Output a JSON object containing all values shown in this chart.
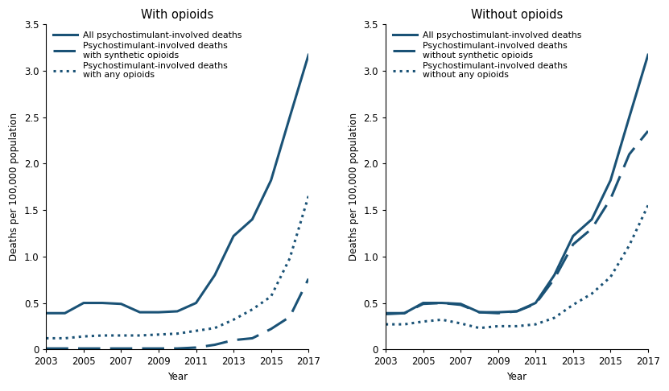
{
  "years": [
    2003,
    2004,
    2005,
    2006,
    2007,
    2008,
    2009,
    2010,
    2011,
    2012,
    2013,
    2014,
    2015,
    2016,
    2017
  ],
  "left_panel": {
    "title": "With opioids",
    "line1_label": "All psychostimulant-involved deaths",
    "line2_label": "Psychostimulant-involved deaths\nwith synthetic opioids",
    "line3_label": "Psychostimulant-involved deaths\nwith any opioids",
    "line1": [
      0.39,
      0.39,
      0.5,
      0.5,
      0.49,
      0.4,
      0.4,
      0.41,
      0.5,
      0.8,
      1.22,
      1.4,
      1.82,
      2.5,
      3.17
    ],
    "line2": [
      0.01,
      0.01,
      0.01,
      0.01,
      0.01,
      0.01,
      0.01,
      0.01,
      0.02,
      0.05,
      0.1,
      0.12,
      0.22,
      0.35,
      0.76
    ],
    "line3": [
      0.12,
      0.12,
      0.14,
      0.15,
      0.15,
      0.15,
      0.16,
      0.17,
      0.2,
      0.23,
      0.32,
      0.43,
      0.57,
      0.98,
      1.65
    ]
  },
  "right_panel": {
    "title": "Without opioids",
    "line1_label": "All psychostimulant-involved deaths",
    "line2_label": "Psychostimulant-involved deaths\nwithout synthetic opioids",
    "line3_label": "Psychostimulant-involved deaths\nwithout any opioids",
    "line1": [
      0.39,
      0.39,
      0.5,
      0.5,
      0.49,
      0.4,
      0.4,
      0.41,
      0.5,
      0.8,
      1.22,
      1.4,
      1.82,
      2.5,
      3.17
    ],
    "line2": [
      0.38,
      0.39,
      0.49,
      0.5,
      0.48,
      0.4,
      0.39,
      0.41,
      0.49,
      0.76,
      1.13,
      1.3,
      1.62,
      2.1,
      2.35
    ],
    "line3": [
      0.27,
      0.27,
      0.3,
      0.32,
      0.28,
      0.23,
      0.25,
      0.25,
      0.27,
      0.34,
      0.48,
      0.6,
      0.78,
      1.12,
      1.55
    ]
  },
  "ylabel": "Deaths per 100,000 population",
  "xlabel": "Year",
  "ylim": [
    0,
    3.5
  ],
  "yticks": [
    0,
    0.5,
    1.0,
    1.5,
    2.0,
    2.5,
    3.0,
    3.5
  ],
  "xticks": [
    2003,
    2005,
    2007,
    2009,
    2011,
    2013,
    2015,
    2017
  ],
  "line_color": "#1a5276",
  "linewidth": 1.8,
  "legend_fontsize": 7.8,
  "axis_fontsize": 8.5,
  "title_fontsize": 10.5
}
